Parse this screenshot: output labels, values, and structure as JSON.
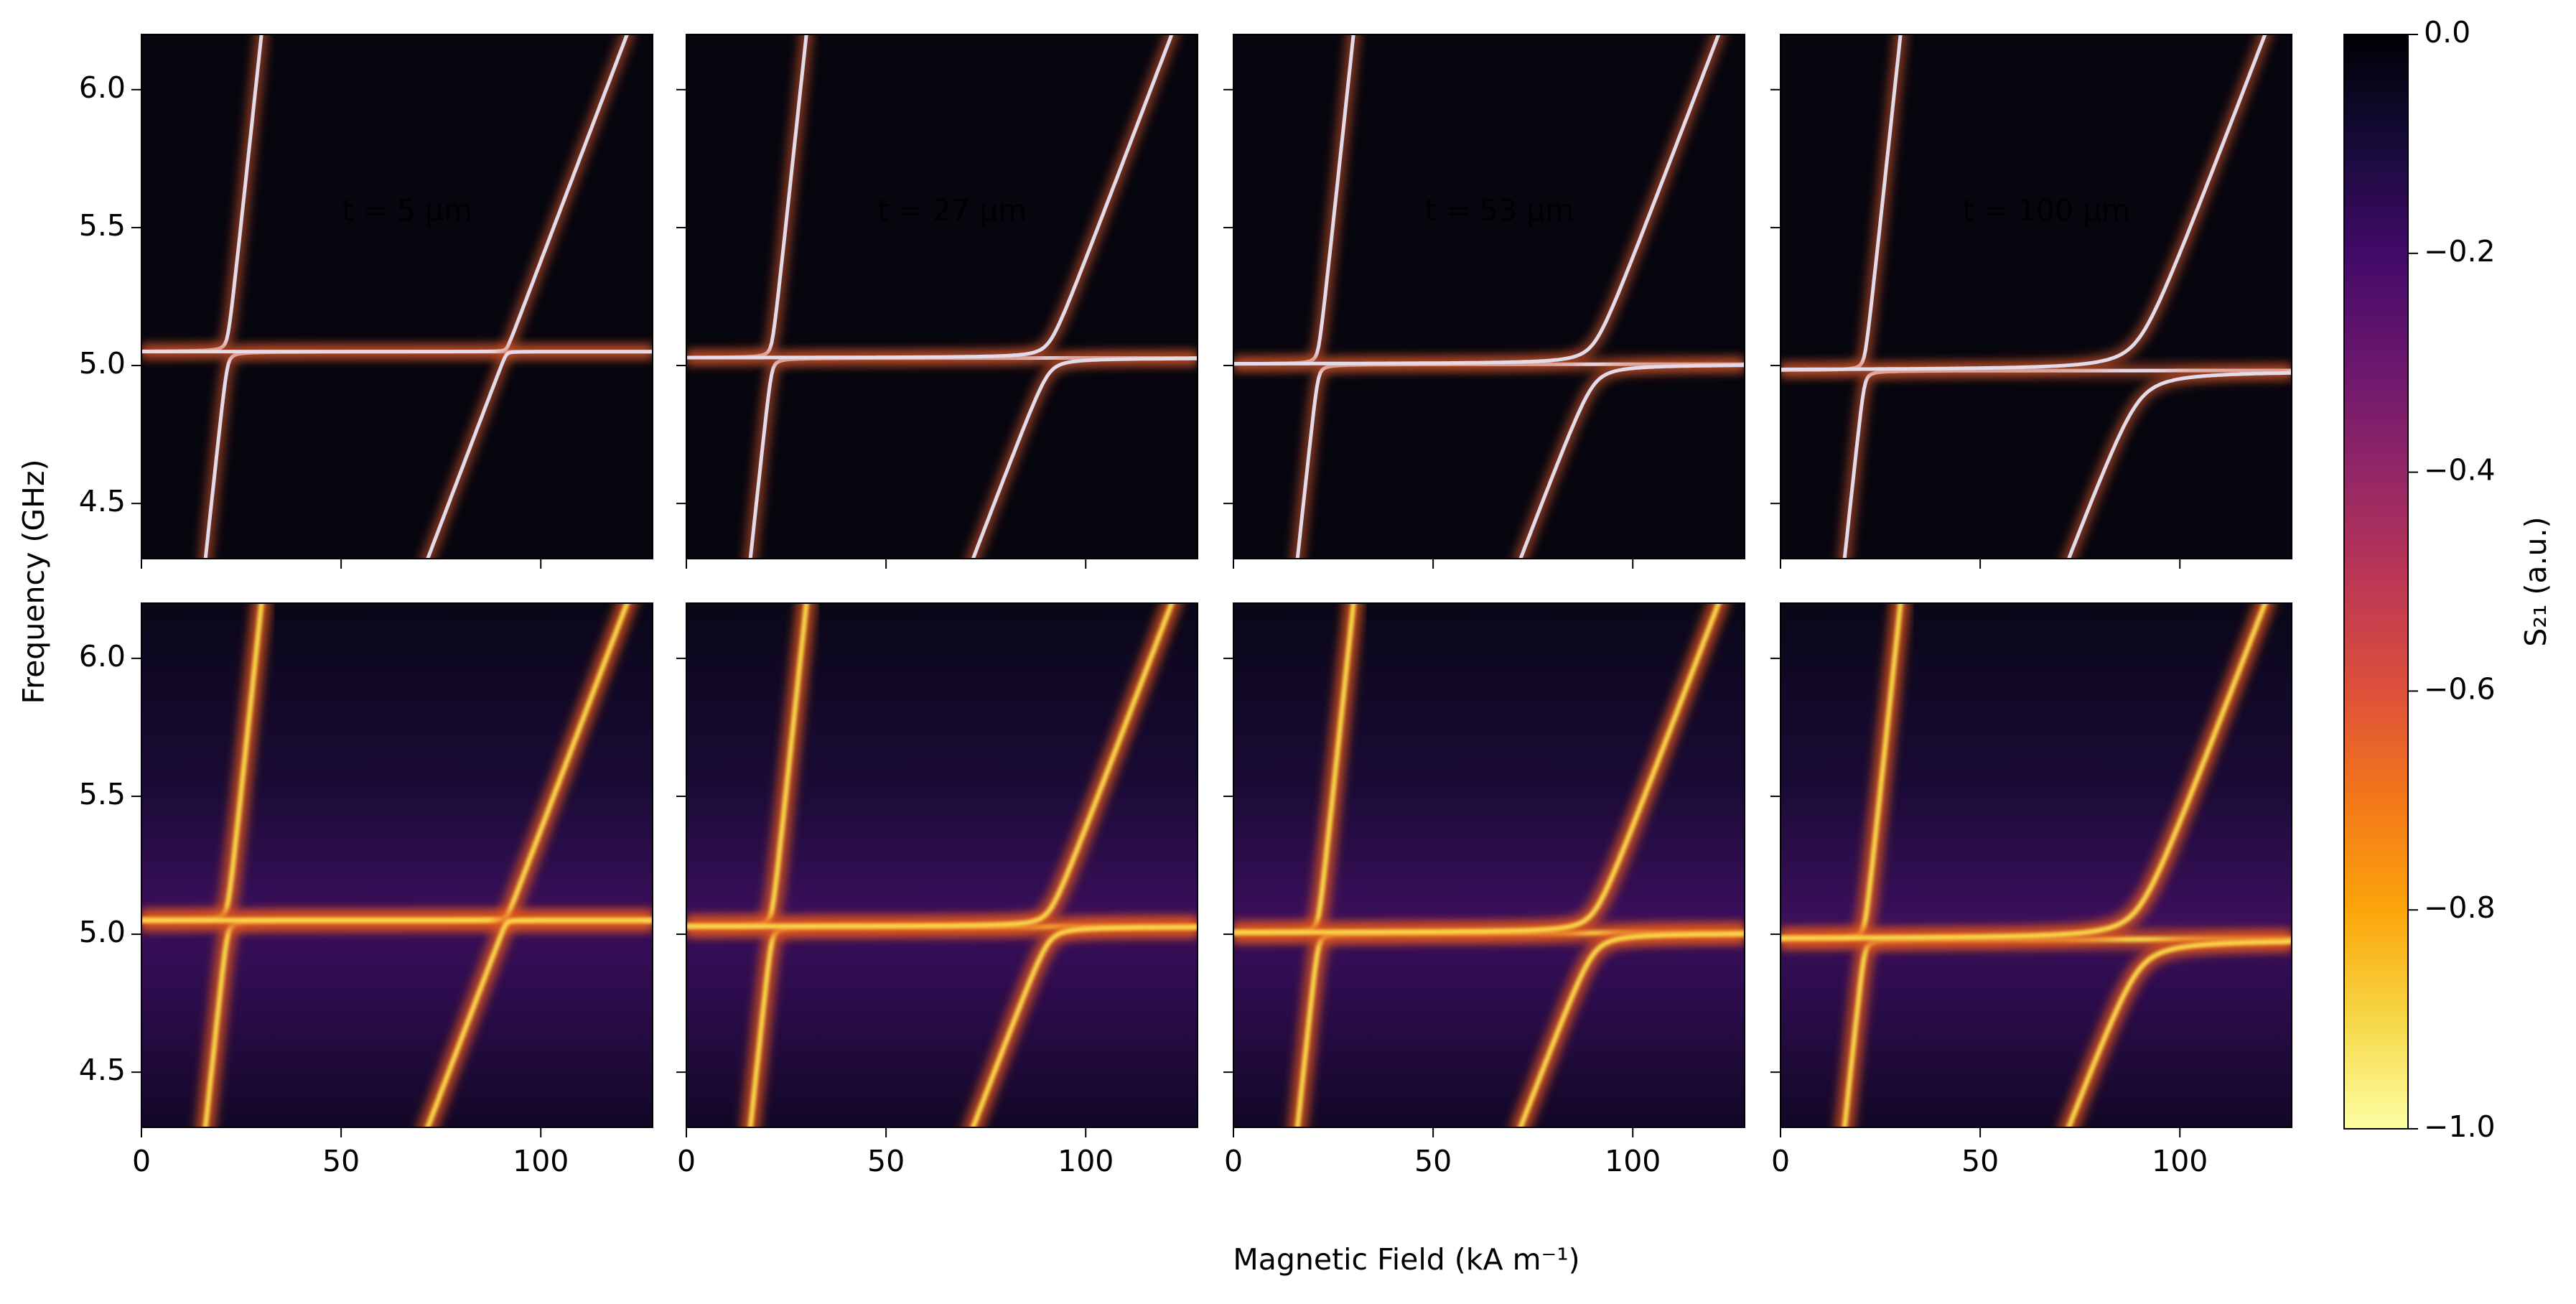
{
  "chart_data": {
    "type": "heatmap",
    "xlabel": "Magnetic Field (kA m⁻¹)",
    "ylabel": "Frequency (GHz)",
    "xlim": [
      0,
      128
    ],
    "xticks": [
      0,
      50,
      100
    ],
    "ylim": [
      4.3,
      6.2
    ],
    "yticks": [
      {
        "value": 4.5,
        "label": "4.5"
      },
      {
        "value": 5.0,
        "label": "5.0"
      },
      {
        "value": 5.5,
        "label": "5.5"
      },
      {
        "value": 6.0,
        "label": "6.0"
      }
    ],
    "panels": [
      {
        "annotation": "t = 5 μm"
      },
      {
        "annotation": "t = 27 μm"
      },
      {
        "annotation": "t = 53 μm"
      },
      {
        "annotation": "t = 100 μm"
      }
    ],
    "colorbar": {
      "label": "S₂₁ (a.u.)",
      "colormap": "inferno_r",
      "lim": [
        -1.0,
        0.0
      ],
      "ticks": [
        {
          "value": 0.0,
          "label": "0.0"
        },
        {
          "value": -0.2,
          "label": "−0.2"
        },
        {
          "value": -0.4,
          "label": "−0.4"
        },
        {
          "value": -0.6,
          "label": "−0.6"
        },
        {
          "value": -0.8,
          "label": "−0.8"
        },
        {
          "value": -1.0,
          "label": "−1.0"
        }
      ]
    }
  }
}
